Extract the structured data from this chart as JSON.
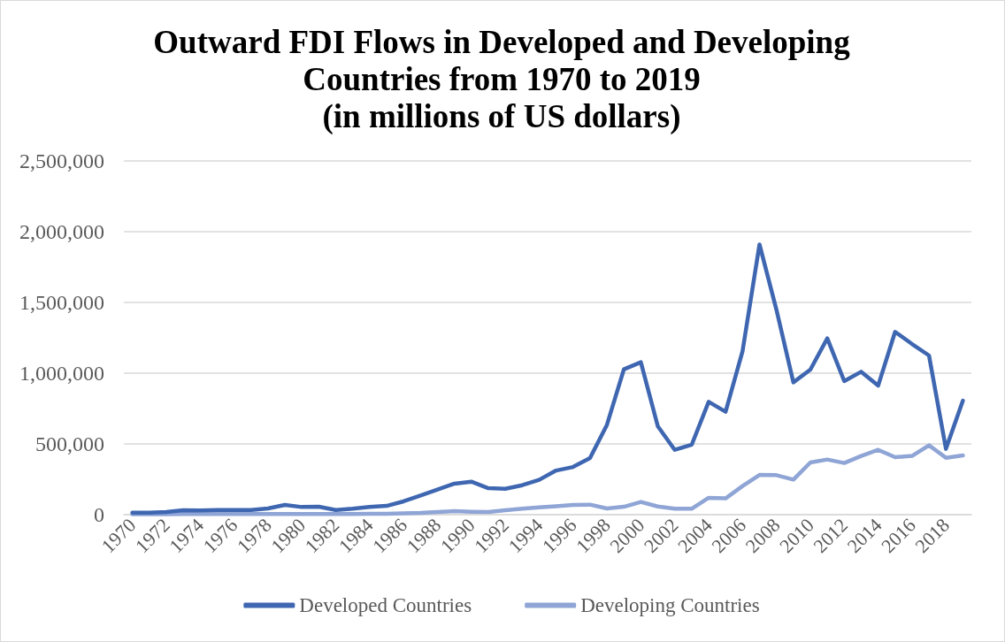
{
  "chart_data": {
    "type": "line",
    "title": "Outward FDI Flows in Developed and Developing\nCountries from 1970 to 2019\n(in millions of US dollars)",
    "categories": [
      "1970",
      null,
      "1972",
      null,
      "1974",
      null,
      "1976",
      null,
      "1978",
      null,
      "1980",
      null,
      "1982",
      null,
      "1984",
      null,
      "1986",
      null,
      "1988",
      null,
      "1990",
      null,
      "1992",
      null,
      "1994",
      null,
      "1996",
      null,
      "1998",
      null,
      "2000",
      null,
      "2002",
      null,
      "2004",
      null,
      "2006",
      null,
      "2008",
      null,
      "2010",
      null,
      "2012",
      null,
      "2014",
      null,
      "2016",
      null,
      "2018",
      null
    ],
    "series": [
      {
        "name": "Developed Countries",
        "color": "#3f67b1",
        "values": [
          14000,
          14000,
          19000,
          31000,
          29000,
          33000,
          33000,
          33000,
          44000,
          69000,
          54000,
          56000,
          33000,
          42000,
          54000,
          62000,
          94000,
          135000,
          177000,
          219000,
          233000,
          187000,
          183000,
          208000,
          246000,
          312000,
          337000,
          400000,
          635000,
          1027000,
          1077000,
          625000,
          458000,
          494000,
          798000,
          727000,
          1156000,
          1910000,
          1448000,
          935000,
          1025000,
          1246000,
          944000,
          1010000,
          912000,
          1292000,
          1206000,
          1125000,
          465000,
          806000
        ]
      },
      {
        "name": "Developing Countries",
        "color": "#8fa5d6",
        "values": [
          3000,
          3000,
          3000,
          4000,
          4000,
          4000,
          4000,
          4000,
          5000,
          5000,
          5000,
          5000,
          5000,
          5000,
          6000,
          7000,
          10000,
          12000,
          19000,
          25000,
          21000,
          19000,
          31000,
          42000,
          52000,
          60000,
          69000,
          71000,
          44000,
          56000,
          90000,
          58000,
          42000,
          42000,
          119000,
          115000,
          202000,
          281000,
          279000,
          248000,
          369000,
          390000,
          365000,
          415000,
          458000,
          406000,
          415000,
          490000,
          402000,
          419000
        ]
      }
    ],
    "ylim": [
      0,
      2500000
    ],
    "yticks": [
      0,
      {
        "value": 500000,
        "label": "500,000"
      },
      {
        "value": 1000000,
        "label": "1,000,000"
      },
      {
        "value": 1500000,
        "label": "1,500,000"
      },
      {
        "value": 2000000,
        "label": "2,000,000"
      },
      {
        "value": 2500000,
        "label": "2,500,000"
      }
    ],
    "grid": "y",
    "legend": "bottom",
    "line_style": "solid"
  }
}
